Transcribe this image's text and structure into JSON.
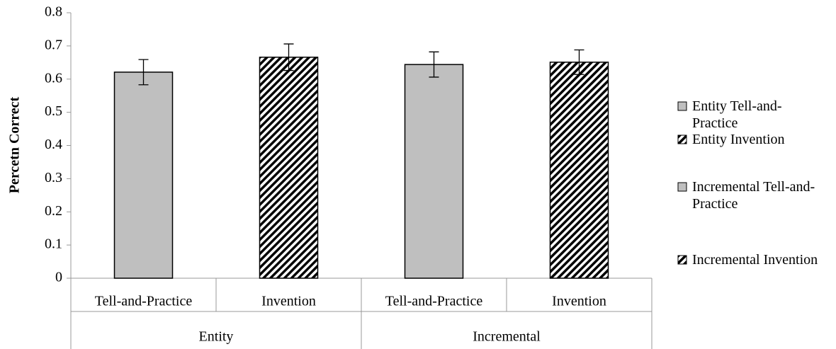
{
  "chart_data": {
    "type": "bar",
    "y_label": "Percetn Correct",
    "categories": [
      "Tell-and-Practice",
      "Invention",
      "Tell-and-Practice",
      "Invention"
    ],
    "groups": [
      "Entity",
      "Incremental"
    ],
    "values": [
      0.621,
      0.666,
      0.644,
      0.651
    ],
    "errors": [
      0.038,
      0.04,
      0.038,
      0.037
    ],
    "legend_labels": [
      "Entity Tell-and-Practice",
      "Entity Invention",
      "Incremental Tell-and-Practice",
      "Incremental Invention"
    ],
    "patterns": [
      "solid",
      "hatch",
      "solid",
      "hatch"
    ],
    "color": "#bfbfbf",
    "ylim": [
      0,
      0.8
    ],
    "yticks": [
      0,
      0.1,
      0.2,
      0.3,
      0.4,
      0.5,
      0.6,
      0.7,
      0.8
    ],
    "grid": false
  }
}
